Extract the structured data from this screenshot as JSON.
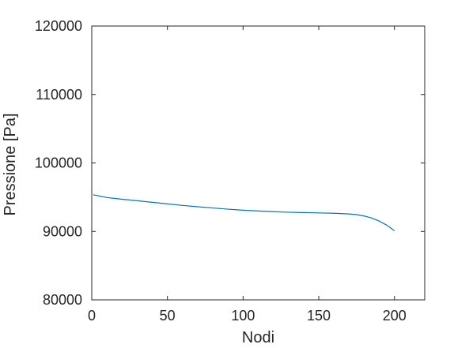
{
  "chart_data": {
    "type": "line",
    "xlabel": "Nodi",
    "ylabel": "Pressione [Pa]",
    "xlim": [
      0,
      220
    ],
    "ylim": [
      80000,
      120000
    ],
    "xticks": [
      0,
      50,
      100,
      150,
      200
    ],
    "yticks": [
      80000,
      90000,
      100000,
      110000,
      120000
    ],
    "grid": false,
    "series": [
      {
        "color": "#0072bd",
        "x": [
          1,
          10,
          20,
          30,
          40,
          50,
          60,
          70,
          80,
          90,
          100,
          110,
          120,
          130,
          140,
          150,
          160,
          170,
          175,
          180,
          185,
          190,
          195,
          200
        ],
        "y": [
          95350,
          94950,
          94700,
          94480,
          94250,
          94020,
          93800,
          93600,
          93420,
          93250,
          93100,
          92980,
          92880,
          92800,
          92750,
          92700,
          92650,
          92550,
          92450,
          92250,
          91950,
          91500,
          90900,
          90100
        ]
      }
    ]
  }
}
